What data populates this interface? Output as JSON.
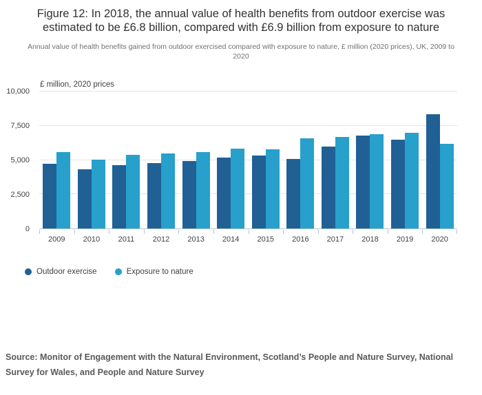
{
  "title": "Figure 12: In 2018, the annual value of health benefits from outdoor exercise was estimated to be £6.8 billion, compared with £6.9 billion from exposure to nature",
  "subtitle": "Annual value of health benefits gained from outdoor exercised compared with exposure to nature, £ million (2020 prices), UK, 2009 to 2020",
  "chart_data": {
    "type": "bar",
    "unit_label": "£ million, 2020 prices",
    "categories": [
      "2009",
      "2010",
      "2011",
      "2012",
      "2013",
      "2014",
      "2015",
      "2016",
      "2017",
      "2018",
      "2019",
      "2020"
    ],
    "series": [
      {
        "name": "Outdoor exercise",
        "color": "#206095",
        "values": [
          4700,
          4300,
          4600,
          4750,
          4950,
          5200,
          5350,
          5100,
          6000,
          6800,
          6500,
          8350
        ]
      },
      {
        "name": "Exposure to nature",
        "color": "#27a0cc",
        "values": [
          5600,
          5050,
          5400,
          5500,
          5600,
          5850,
          5800,
          6600,
          6700,
          6900,
          7000,
          6200
        ]
      }
    ],
    "y_ticks": [
      {
        "label": "0",
        "value": 0
      },
      {
        "label": "2,500",
        "value": 2500
      },
      {
        "label": "5,000",
        "value": 5000
      },
      {
        "label": "7,500",
        "value": 7500
      },
      {
        "label": "10,000",
        "value": 10000
      }
    ],
    "ylim": [
      0,
      10000
    ],
    "grid": true,
    "legend_position": "bottom-left"
  },
  "legend": {
    "items": [
      {
        "label": "Outdoor exercise",
        "color": "#206095"
      },
      {
        "label": "Exposure to nature",
        "color": "#27a0cc"
      }
    ]
  },
  "source": "Source: Monitor of Engagement with the Natural Environment, Scotland’s People and Nature Survey, National Survey for Wales, and People and Nature Survey"
}
